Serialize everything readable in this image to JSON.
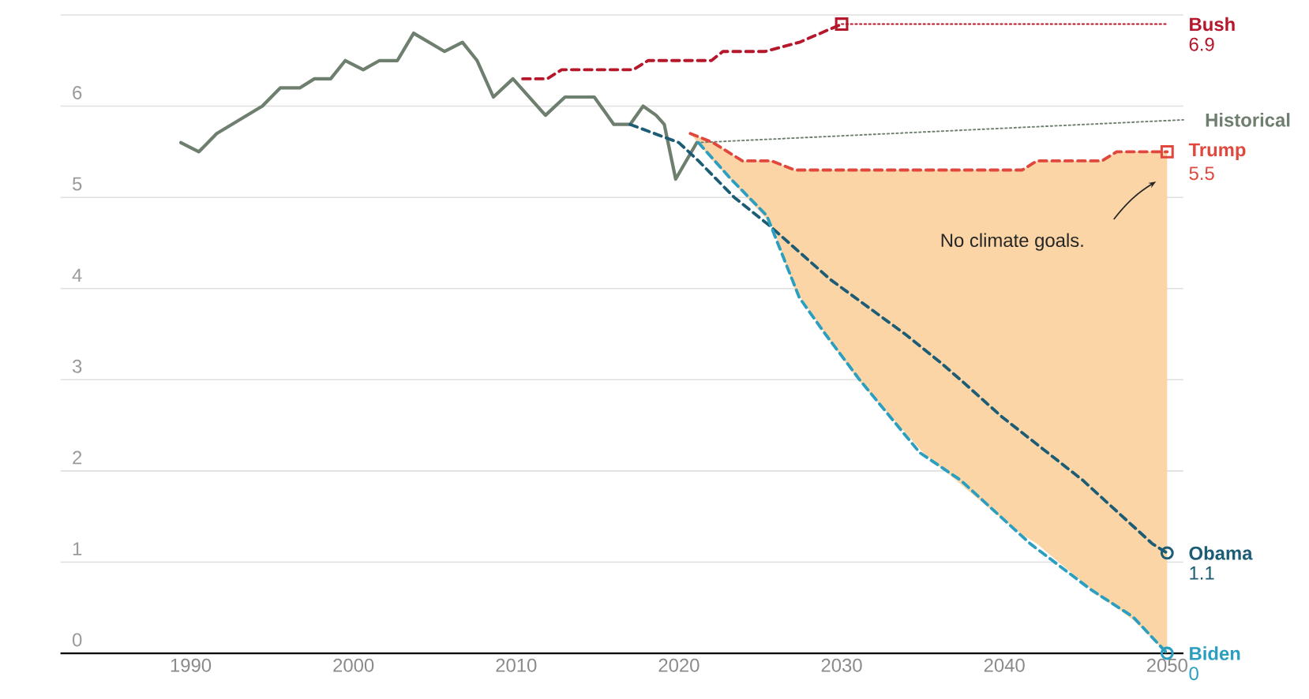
{
  "chart_data": {
    "type": "line",
    "xlim": [
      1982,
      2051
    ],
    "ylim": [
      0,
      7
    ],
    "xticks": [
      1990,
      2000,
      2010,
      2020,
      2030,
      2040,
      2050
    ],
    "yticks": [
      0,
      1,
      2,
      3,
      4,
      5,
      6,
      {
        "value": 7,
        "label": null
      }
    ],
    "grid": "y",
    "annotations": [
      "No climate goals."
    ],
    "series": [
      {
        "color": "#6f7f6f",
        "line_style": "solid",
        "x": [
          1989.4,
          1990.5,
          1991.6,
          1994.4,
          1995.5,
          1996.7,
          1997.6,
          1998.6,
          1999.5,
          2000.6,
          2001.6,
          2002.7,
          2003.7,
          2005.6,
          2006.7,
          2007.6,
          2008.6,
          2009.8,
          2011.8,
          2013.0,
          2014.8,
          2016.0,
          2017.0,
          2017.8,
          2018.6,
          2019.1,
          2019.8,
          2021.1
        ],
        "values": [
          5.6,
          5.5,
          5.7,
          6.0,
          6.2,
          6.2,
          6.3,
          6.3,
          6.5,
          6.4,
          6.5,
          6.5,
          6.8,
          6.6,
          6.7,
          6.5,
          6.1,
          6.3,
          5.9,
          6.1,
          6.1,
          5.8,
          5.8,
          6.0,
          5.9,
          5.8,
          5.2,
          5.6
        ]
      },
      {
        "name": "Historical",
        "color": "#6f7f6f",
        "line_style": "dotted",
        "x": [
          2021.1,
          2051
        ],
        "values": [
          5.6,
          5.85
        ]
      },
      {
        "color": "#b5172b",
        "line_style": "dashed",
        "x": [
          2010.4,
          2011.9,
          2012.8,
          2017.2,
          2018.1,
          2022.0,
          2022.7,
          2025.3,
          2027.4,
          2030
        ],
        "values": [
          6.3,
          6.3,
          6.4,
          6.4,
          6.5,
          6.5,
          6.6,
          6.6,
          6.7,
          6.9
        ]
      },
      {
        "name": "Bush",
        "color": "#b5172b",
        "line_style": "dotted",
        "x": [
          2030,
          2050
        ],
        "values": [
          6.9,
          6.9
        ],
        "value_labels": [
          null,
          "6.9"
        ]
      },
      {
        "name": "Trump",
        "color": "#e0483e",
        "line_style": "dashed",
        "x": [
          2020.7,
          2022.1,
          2023.9,
          2025.7,
          2027.1,
          2029,
          2031,
          2033,
          2035,
          2037,
          2039,
          2041.1,
          2042.0,
          2044,
          2046.0,
          2046.9,
          2048,
          2050
        ],
        "values": [
          5.7,
          5.6,
          5.4,
          5.4,
          5.3,
          5.3,
          5.3,
          5.3,
          5.3,
          5.3,
          5.3,
          5.3,
          5.4,
          5.4,
          5.4,
          5.5,
          5.5,
          5.5
        ],
        "upper": [
          5.7,
          5.6,
          5.4,
          5.4,
          5.3,
          5.3,
          5.3,
          5.3,
          5.3,
          5.3,
          5.3,
          5.3,
          5.4,
          5.4,
          5.4,
          5.5,
          5.5,
          5.5
        ],
        "lower": [
          5.7,
          5.4,
          5.05,
          4.7,
          4.0,
          3.5,
          3.0,
          2.6,
          2.2,
          1.9,
          1.6,
          1.3,
          1.2,
          0.9,
          0.6,
          0.5,
          0.35,
          0
        ],
        "value_labels": [
          null,
          null,
          null,
          null,
          null,
          null,
          null,
          null,
          null,
          null,
          null,
          null,
          null,
          null,
          null,
          null,
          null,
          "5.5"
        ]
      },
      {
        "name": "Obama",
        "color": "#1d5c75",
        "line_style": "dashed",
        "x": [
          2017.0,
          2020.0,
          2021.2,
          2023.4,
          2025.5,
          2029.3,
          2033.9,
          2036.0,
          2037.3,
          2039.8,
          2044.8,
          2049.1,
          2050
        ],
        "values": [
          5.8,
          5.6,
          5.4,
          5.0,
          4.7,
          4.1,
          3.5,
          3.2,
          3.0,
          2.6,
          1.9,
          1.2,
          1.1
        ],
        "value_labels": [
          null,
          null,
          null,
          null,
          null,
          null,
          null,
          null,
          null,
          null,
          null,
          null,
          "1.1"
        ]
      },
      {
        "name": "Biden",
        "color": "#2b9fbf",
        "line_style": "dashed",
        "x": [
          2021.2,
          2023.2,
          2025.4,
          2027.4,
          2029.0,
          2031.1,
          2034.8,
          2037.3,
          2041.6,
          2045.3,
          2047.9,
          2050
        ],
        "values": [
          5.6,
          5.2,
          4.8,
          3.9,
          3.5,
          3.0,
          2.2,
          1.9,
          1.2,
          0.7,
          0.4,
          0
        ],
        "value_labels": [
          null,
          null,
          null,
          null,
          null,
          null,
          null,
          null,
          null,
          null,
          null,
          "0"
        ]
      },
      {
        "type": "scatter",
        "marker": "square",
        "color": "#b5172b",
        "x": [
          2030
        ],
        "values": [
          6.9
        ]
      },
      {
        "type": "scatter",
        "marker": "square",
        "color": "#e0483e",
        "x": [
          2050
        ],
        "values": [
          5.5
        ]
      },
      {
        "type": "scatter",
        "marker": "circle",
        "color": "#1d5c75",
        "x": [
          2050
        ],
        "values": [
          1.1
        ]
      },
      {
        "type": "scatter",
        "marker": "circle",
        "color": "#2b9fbf",
        "x": [
          2050
        ],
        "values": [
          0
        ]
      }
    ]
  }
}
